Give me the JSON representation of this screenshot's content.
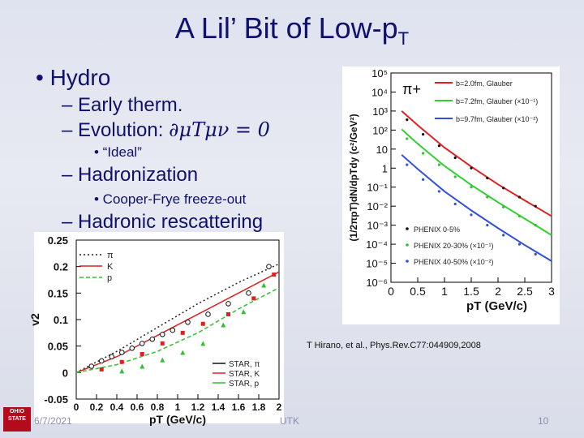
{
  "slide": {
    "title_main": "A Lil’ Bit of Low-p",
    "title_sub": "T",
    "bullets": {
      "hydro": "• Hydro",
      "early": "– Early therm.",
      "evolution": "– Evolution: ",
      "evolution_eq": "∂μTμν = 0",
      "ideal": "• “Ideal”",
      "hadronization": "– Hadronization",
      "cooper": "• Cooper-Frye freeze-out",
      "rescattering": "– Hadronic rescattering"
    },
    "reference": "T Hirano, et al., Phys.Rev.C77:044909,2008",
    "footer": {
      "date": "6/7/2021",
      "venue": "UTK",
      "page": "10"
    },
    "logo": {
      "line1": "OHIO",
      "line2": "STATE"
    }
  },
  "chart_data": [
    {
      "type": "line",
      "title": "",
      "xlabel": "pT (GeV/c)",
      "ylabel": "(1/2πpT)dN/dpTdy (c²/GeV²)",
      "yscale": "log",
      "xlim": [
        0,
        3
      ],
      "ylim": [
        1e-06,
        100000.0
      ],
      "particle_label": "π+",
      "x_ticks": [
        "0",
        "0.5",
        "1",
        "1.5",
        "2",
        "2.5",
        "3"
      ],
      "y_ticks": [
        "10⁵",
        "10⁴",
        "10³",
        "10²",
        "10",
        "1",
        "10⁻¹",
        "10⁻²",
        "10⁻³",
        "10⁻⁴",
        "10⁻⁵",
        "10⁻⁶"
      ],
      "series": [
        {
          "name": "b=2.0fm, Glauber",
          "color": "#e02020",
          "style": "solid",
          "x": [
            0.2,
            0.5,
            1.0,
            1.5,
            2.0,
            2.5,
            3.0
          ],
          "y": [
            1000,
            180,
            12,
            1.2,
            0.14,
            0.02,
            0.003
          ]
        },
        {
          "name": "b=7.2fm, Glauber (×10⁻¹)",
          "color": "#30d030",
          "style": "solid",
          "x": [
            0.2,
            0.5,
            1.0,
            1.5,
            2.0,
            2.5,
            3.0
          ],
          "y": [
            110,
            19,
            1.3,
            0.13,
            0.016,
            0.0022,
            0.0003
          ]
        },
        {
          "name": "b=9.7fm, Glauber (×10⁻²)",
          "color": "#3050e0",
          "style": "solid",
          "x": [
            0.2,
            0.5,
            1.0,
            1.5,
            2.0,
            2.5,
            3.0
          ],
          "y": [
            5,
            0.9,
            0.06,
            0.006,
            0.0007,
            9e-05,
            1.3e-05
          ]
        },
        {
          "name": "PHENIX 0-5%",
          "color": "#111111",
          "style": "points",
          "x": [
            0.3,
            0.6,
            0.9,
            1.2,
            1.5,
            1.8,
            2.1,
            2.4,
            2.7
          ],
          "y": [
            350,
            60,
            15,
            3.5,
            1.0,
            0.3,
            0.09,
            0.03,
            0.01
          ]
        },
        {
          "name": "PHENIX 20-30% (×10⁻¹)",
          "color": "#30c030",
          "style": "points",
          "x": [
            0.3,
            0.6,
            0.9,
            1.2,
            1.5,
            1.8,
            2.1,
            2.4,
            2.7
          ],
          "y": [
            35,
            6,
            1.5,
            0.35,
            0.1,
            0.03,
            0.009,
            0.003,
            0.001
          ]
        },
        {
          "name": "PHENIX 40-50% (×10⁻²)",
          "color": "#3050e0",
          "style": "points",
          "x": [
            0.3,
            0.6,
            0.9,
            1.2,
            1.5,
            1.8,
            2.1,
            2.4,
            2.7
          ],
          "y": [
            1.5,
            0.25,
            0.06,
            0.013,
            0.0035,
            0.001,
            0.0003,
            0.0001,
            3e-05
          ]
        }
      ]
    },
    {
      "type": "line",
      "title": "",
      "xlabel": "pT (GeV/c)",
      "ylabel": "v2",
      "xlim": [
        0,
        2
      ],
      "ylim": [
        -0.05,
        0.25
      ],
      "x_ticks": [
        "0",
        "0.2",
        "0.4",
        "0.6",
        "0.8",
        "1",
        "1.2",
        "1.4",
        "1.6",
        "1.8",
        "2"
      ],
      "y_ticks": [
        "0.25",
        "0.2",
        "0.15",
        "0.1",
        "0.05",
        "0",
        "-0.05"
      ],
      "series": [
        {
          "name": "π",
          "color": "#222222",
          "style": "dotted",
          "x": [
            0,
            0.4,
            0.8,
            1.2,
            1.6,
            2.0
          ],
          "y": [
            0,
            0.04,
            0.085,
            0.13,
            0.17,
            0.205
          ]
        },
        {
          "name": "K",
          "color": "#e02020",
          "style": "solid",
          "x": [
            0,
            0.4,
            0.8,
            1.2,
            1.6,
            2.0
          ],
          "y": [
            0,
            0.03,
            0.07,
            0.11,
            0.15,
            0.19
          ]
        },
        {
          "name": "p",
          "color": "#30c030",
          "style": "dashed",
          "x": [
            0,
            0.4,
            0.8,
            1.2,
            1.6,
            2.0
          ],
          "y": [
            0,
            0.015,
            0.04,
            0.075,
            0.12,
            0.16
          ]
        },
        {
          "name": "STAR, π",
          "color": "#111111",
          "style": "markers",
          "x": [
            0.15,
            0.25,
            0.35,
            0.45,
            0.55,
            0.65,
            0.75,
            0.85,
            0.95,
            1.1,
            1.3,
            1.5,
            1.7,
            1.9
          ],
          "y": [
            0.012,
            0.022,
            0.03,
            0.038,
            0.046,
            0.055,
            0.063,
            0.072,
            0.08,
            0.095,
            0.11,
            0.13,
            0.15,
            0.2
          ]
        },
        {
          "name": "STAR, K",
          "color": "#e02020",
          "style": "markers",
          "x": [
            0.25,
            0.45,
            0.65,
            0.85,
            1.05,
            1.25,
            1.5,
            1.75,
            1.95
          ],
          "y": [
            0.006,
            0.02,
            0.035,
            0.055,
            0.075,
            0.092,
            0.11,
            0.14,
            0.185
          ]
        },
        {
          "name": "STAR, p",
          "color": "#30c030",
          "style": "markers",
          "x": [
            0.45,
            0.65,
            0.85,
            1.05,
            1.25,
            1.45,
            1.65,
            1.85
          ],
          "y": [
            0.003,
            0.012,
            0.024,
            0.038,
            0.055,
            0.09,
            0.115,
            0.165
          ]
        }
      ]
    }
  ]
}
